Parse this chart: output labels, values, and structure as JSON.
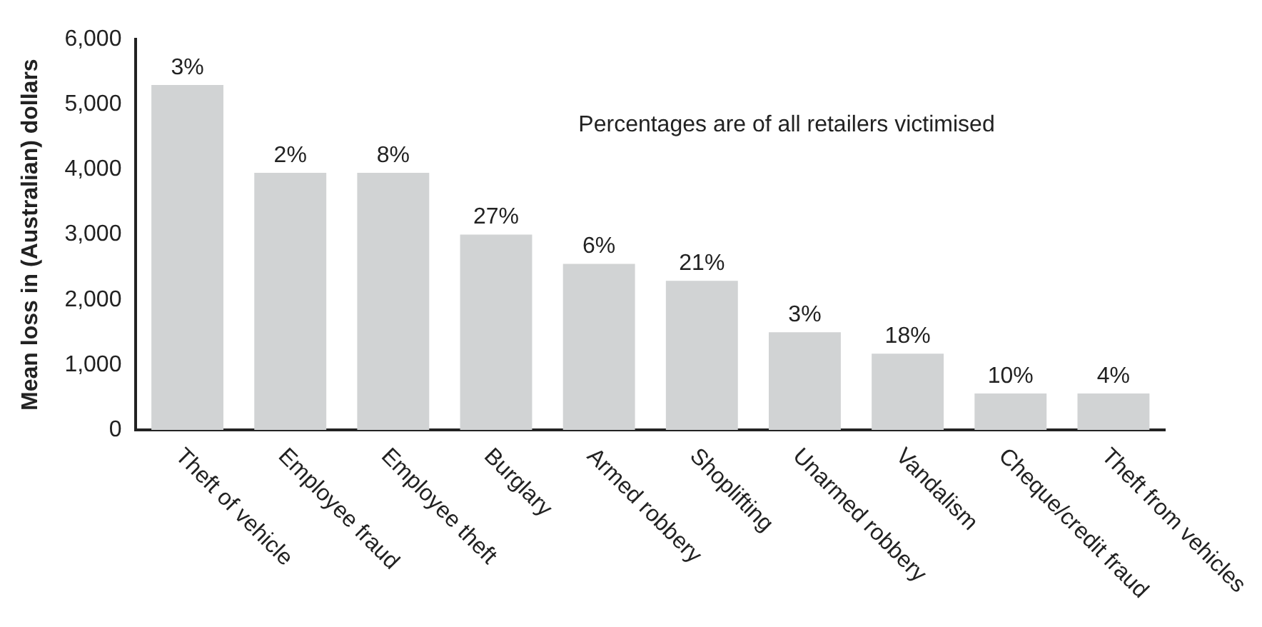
{
  "chart_data": {
    "type": "bar",
    "ylabel": "Mean loss in (Australian) dollars",
    "categories": [
      "Theft of vehicle",
      "Employee fraud",
      "Employee theft",
      "Burglary",
      "Armed robbery",
      "Shoplifting",
      "Unarmed robbery",
      "Vandalism",
      "Cheque/credit fraud",
      "Theft from vehicles"
    ],
    "values": [
      5300,
      3950,
      3950,
      3000,
      2550,
      2290,
      1500,
      1170,
      560,
      560
    ],
    "color": "#d1d3d4",
    "ylim": [
      0,
      6000
    ],
    "yticks": [
      {
        "value": 0,
        "label": "0"
      },
      {
        "value": 1000,
        "label": "1,000"
      },
      {
        "value": 2000,
        "label": "2,000"
      },
      {
        "value": 3000,
        "label": "3,000"
      },
      {
        "value": 4000,
        "label": "4,000"
      },
      {
        "value": 5000,
        "label": "5,000"
      },
      {
        "value": 6000,
        "label": "6,000"
      }
    ],
    "grid": false,
    "legend": false,
    "annotations": [
      "Percentages are of all retailers victimised",
      {
        "text": "3%",
        "x": "Theft of vehicle",
        "y": 5300
      },
      {
        "text": "2%",
        "x": "Employee fraud",
        "y": 3950
      },
      {
        "text": "8%",
        "x": "Employee theft",
        "y": 3950
      },
      {
        "text": "27%",
        "x": "Burglary",
        "y": 3000
      },
      {
        "text": "6%",
        "x": "Armed robbery",
        "y": 2550
      },
      {
        "text": "21%",
        "x": "Shoplifting",
        "y": 2290
      },
      {
        "text": "3%",
        "x": "Unarmed robbery",
        "y": 1500
      },
      {
        "text": "18%",
        "x": "Vandalism",
        "y": 1170
      },
      {
        "text": "10%",
        "x": "Cheque/credit fraud",
        "y": 560
      },
      {
        "text": "4%",
        "x": "Theft from vehicles",
        "y": 560
      }
    ]
  }
}
